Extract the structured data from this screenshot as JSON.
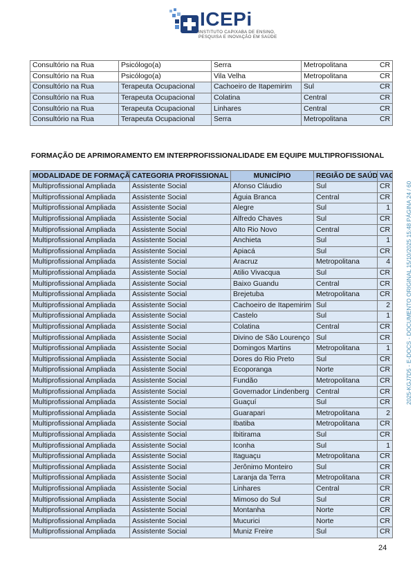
{
  "logo": {
    "name": "ICEPi",
    "subtitle_line1": "INSTITUTO CAPIXABA DE ENSINO,",
    "subtitle_line2": "PESQUISA E INOVAÇÃO EM SAÚDE",
    "color": "#1f3f7a"
  },
  "table1": {
    "rows": [
      [
        "Consultório na Rua",
        "Psicólogo(a)",
        "Serra",
        "Metropolitana",
        "CR"
      ],
      [
        "Consultório na Rua",
        "Psicólogo(a)",
        "Vila Velha",
        "Metropolitana",
        "CR"
      ],
      [
        "Consultório na Rua",
        "Terapeuta Ocupacional",
        "Cachoeiro de Itapemirim",
        "Sul",
        "CR"
      ],
      [
        "Consultório na Rua",
        "Terapeuta Ocupacional",
        "Colatina",
        "Central",
        "CR"
      ],
      [
        "Consultório na Rua",
        "Terapeuta Ocupacional",
        "Linhares",
        "Central",
        "CR"
      ],
      [
        "Consultório na Rua",
        "Terapeuta Ocupacional",
        "Serra",
        "Metropolitana",
        "CR"
      ]
    ]
  },
  "section_title": "FORMAÇÃO DE APRIMORAMENTO EM INTERPROFISSIONALIDADE EM EQUIPE MULTIPROFISSIONAL",
  "table2": {
    "headers": [
      "MODALIDADE DE FORMAÇÃO",
      "CATEGORIA PROFISSIONAL",
      "MUNICÍPIO",
      "REGIÃO DE SAÚDE",
      "VAGAS"
    ],
    "rows": [
      [
        "Multiprofissional Ampliada",
        "Assistente Social",
        "Afonso Cláudio",
        "Sul",
        "CR"
      ],
      [
        "Multiprofissional Ampliada",
        "Assistente Social",
        "Águia Branca",
        "Central",
        "CR"
      ],
      [
        "Multiprofissional Ampliada",
        "Assistente Social",
        "Alegre",
        "Sul",
        "1"
      ],
      [
        "Multiprofissional Ampliada",
        "Assistente Social",
        "Alfredo Chaves",
        "Sul",
        "CR"
      ],
      [
        "Multiprofissional Ampliada",
        "Assistente Social",
        "Alto Rio Novo",
        "Central",
        "CR"
      ],
      [
        "Multiprofissional Ampliada",
        "Assistente Social",
        "Anchieta",
        "Sul",
        "1"
      ],
      [
        "Multiprofissional Ampliada",
        "Assistente Social",
        "Apiacá",
        "Sul",
        "CR"
      ],
      [
        "Multiprofissional Ampliada",
        "Assistente Social",
        "Aracruz",
        "Metropolitana",
        "4"
      ],
      [
        "Multiprofissional Ampliada",
        "Assistente Social",
        "Atilio Vivacqua",
        "Sul",
        "CR"
      ],
      [
        "Multiprofissional Ampliada",
        "Assistente Social",
        "Baixo Guandu",
        "Central",
        "CR"
      ],
      [
        "Multiprofissional Ampliada",
        "Assistente Social",
        "Brejetuba",
        "Metropolitana",
        "CR"
      ],
      [
        "Multiprofissional Ampliada",
        "Assistente Social",
        "Cachoeiro de Itapemirim",
        "Sul",
        "2"
      ],
      [
        "Multiprofissional Ampliada",
        "Assistente Social",
        "Castelo",
        "Sul",
        "1"
      ],
      [
        "Multiprofissional Ampliada",
        "Assistente Social",
        "Colatina",
        "Central",
        "CR"
      ],
      [
        "Multiprofissional Ampliada",
        "Assistente Social",
        "Divino de São Lourenço",
        "Sul",
        "CR"
      ],
      [
        "Multiprofissional Ampliada",
        "Assistente Social",
        "Domingos Martins",
        "Metropolitana",
        "1"
      ],
      [
        "Multiprofissional Ampliada",
        "Assistente Social",
        "Dores do Rio Preto",
        "Sul",
        "CR"
      ],
      [
        "Multiprofissional Ampliada",
        "Assistente Social",
        "Ecoporanga",
        "Norte",
        "CR"
      ],
      [
        "Multiprofissional Ampliada",
        "Assistente Social",
        "Fundão",
        "Metropolitana",
        "CR"
      ],
      [
        "Multiprofissional Ampliada",
        "Assistente Social",
        "Governador Lindenberg",
        "Central",
        "CR"
      ],
      [
        "Multiprofissional Ampliada",
        "Assistente Social",
        "Guaçuí",
        "Sul",
        "CR"
      ],
      [
        "Multiprofissional Ampliada",
        "Assistente Social",
        "Guarapari",
        "Metropolitana",
        "2"
      ],
      [
        "Multiprofissional Ampliada",
        "Assistente Social",
        "Ibatiba",
        "Metropolitana",
        "CR"
      ],
      [
        "Multiprofissional Ampliada",
        "Assistente Social",
        "Ibitirama",
        "Sul",
        "CR"
      ],
      [
        "Multiprofissional Ampliada",
        "Assistente Social",
        "Iconha",
        "Sul",
        "1"
      ],
      [
        "Multiprofissional Ampliada",
        "Assistente Social",
        "Itaguaçu",
        "Metropolitana",
        "CR"
      ],
      [
        "Multiprofissional Ampliada",
        "Assistente Social",
        "Jerônimo Monteiro",
        "Sul",
        "CR"
      ],
      [
        "Multiprofissional Ampliada",
        "Assistente Social",
        "Laranja da Terra",
        "Metropolitana",
        "CR"
      ],
      [
        "Multiprofissional Ampliada",
        "Assistente Social",
        "Linhares",
        "Central",
        "CR"
      ],
      [
        "Multiprofissional Ampliada",
        "Assistente Social",
        "Mimoso do Sul",
        "Sul",
        "CR"
      ],
      [
        "Multiprofissional Ampliada",
        "Assistente Social",
        "Montanha",
        "Norte",
        "CR"
      ],
      [
        "Multiprofissional Ampliada",
        "Assistente Social",
        "Mucurici",
        "Norte",
        "CR"
      ],
      [
        "Multiprofissional Ampliada",
        "Assistente Social",
        "Muniz Freire",
        "Sul",
        "CR"
      ]
    ]
  },
  "side_stamp": "2025-KGJ7D5 - E-DOCS - DOCUMENTO ORIGINAL    15/10/2025 15:48    PÁGINA 24 / 60",
  "page_number": "24"
}
